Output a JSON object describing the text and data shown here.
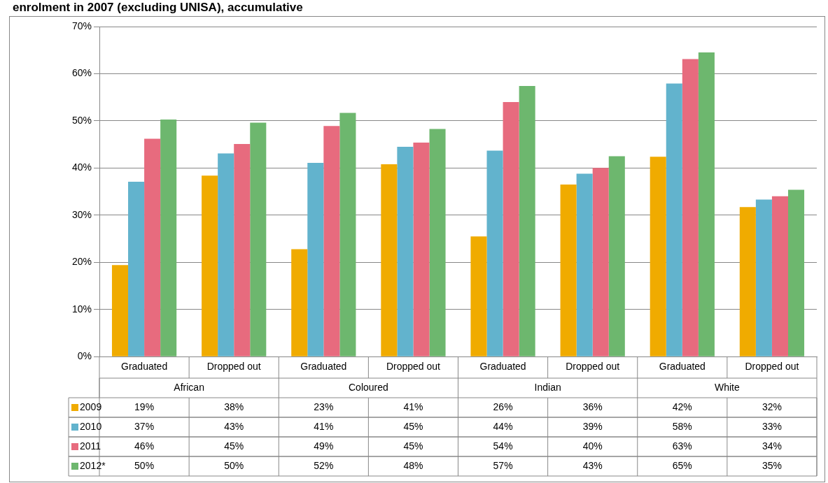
{
  "chart_data": {
    "type": "bar",
    "title": "enrolment in 2007 (excluding UNISA), accumulative",
    "categories": [
      "Graduated",
      "Dropped out",
      "Graduated",
      "Dropped out",
      "Graduated",
      "Dropped out",
      "Graduated",
      "Dropped out"
    ],
    "annotations": [
      "African",
      "Coloured",
      "Indian",
      "White"
    ],
    "series": [
      {
        "name": "2009",
        "color": "#f0ab00",
        "values": [
          19.4,
          38.4,
          22.8,
          40.8,
          25.5,
          36.5,
          42.4,
          31.7
        ],
        "value_labels": [
          "19%",
          "38%",
          "23%",
          "41%",
          "26%",
          "36%",
          "42%",
          "32%"
        ]
      },
      {
        "name": "2010",
        "color": "#62b3cd",
        "values": [
          37.1,
          43.1,
          41.1,
          44.5,
          43.7,
          38.8,
          57.9,
          33.3
        ],
        "value_labels": [
          "37%",
          "43%",
          "41%",
          "45%",
          "44%",
          "39%",
          "58%",
          "33%"
        ]
      },
      {
        "name": "2011",
        "color": "#e76b7e",
        "values": [
          46.2,
          45.1,
          48.9,
          45.4,
          54.0,
          40.0,
          63.1,
          34.0
        ],
        "value_labels": [
          "46%",
          "45%",
          "49%",
          "45%",
          "54%",
          "40%",
          "63%",
          "34%"
        ]
      },
      {
        "name": "2012*",
        "color": "#6db76e",
        "values": [
          50.3,
          49.6,
          51.7,
          48.3,
          57.4,
          42.5,
          64.5,
          35.4
        ],
        "value_labels": [
          "50%",
          "50%",
          "52%",
          "48%",
          "57%",
          "43%",
          "65%",
          "35%"
        ]
      }
    ],
    "ylim": [
      0,
      70
    ],
    "yticks": [
      {
        "value": 0,
        "label": "0%"
      },
      {
        "value": 10,
        "label": "10%"
      },
      {
        "value": 20,
        "label": "20%"
      },
      {
        "value": 30,
        "label": "30%"
      },
      {
        "value": 40,
        "label": "40%"
      },
      {
        "value": 50,
        "label": "50%"
      },
      {
        "value": 60,
        "label": "60%"
      },
      {
        "value": 70,
        "label": "70%"
      }
    ],
    "grid": "y",
    "legend": "bottom"
  }
}
